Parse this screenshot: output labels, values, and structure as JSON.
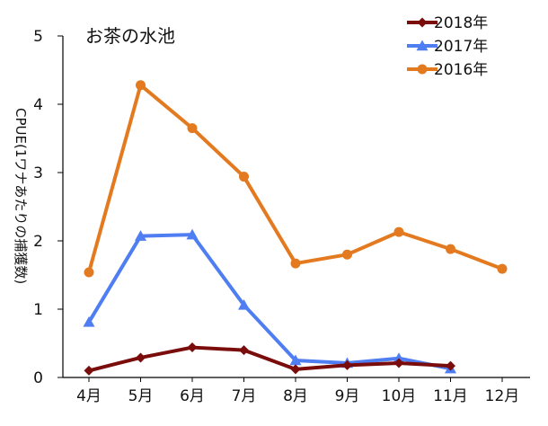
{
  "chart_data": {
    "type": "line",
    "title": "お茶の水池",
    "xlabel": "",
    "ylabel": "CPUE(1ワナあたりの捕獲数)",
    "ylim": [
      0,
      5
    ],
    "yticks": [
      "0",
      "1",
      "2",
      "3",
      "4",
      "5"
    ],
    "categories": [
      "4月",
      "5月",
      "6月",
      "7月",
      "8月",
      "9月",
      "10月",
      "11月",
      "12月"
    ],
    "grid": false,
    "legend_position": "top-right",
    "series": [
      {
        "name": "2018年",
        "color": "#7a0c0c",
        "marker": "diamond",
        "values": [
          0.1,
          0.29,
          0.44,
          0.4,
          0.12,
          0.18,
          0.21,
          0.17,
          null
        ]
      },
      {
        "name": "2017年",
        "color": "#4f7df2",
        "marker": "triangle",
        "values": [
          0.81,
          2.07,
          2.09,
          1.06,
          0.25,
          0.21,
          0.28,
          0.13,
          null
        ]
      },
      {
        "name": "2016年",
        "color": "#e47a1f",
        "marker": "circle",
        "values": [
          1.54,
          4.28,
          3.65,
          2.94,
          1.67,
          1.8,
          2.13,
          1.88,
          1.59
        ]
      }
    ]
  }
}
